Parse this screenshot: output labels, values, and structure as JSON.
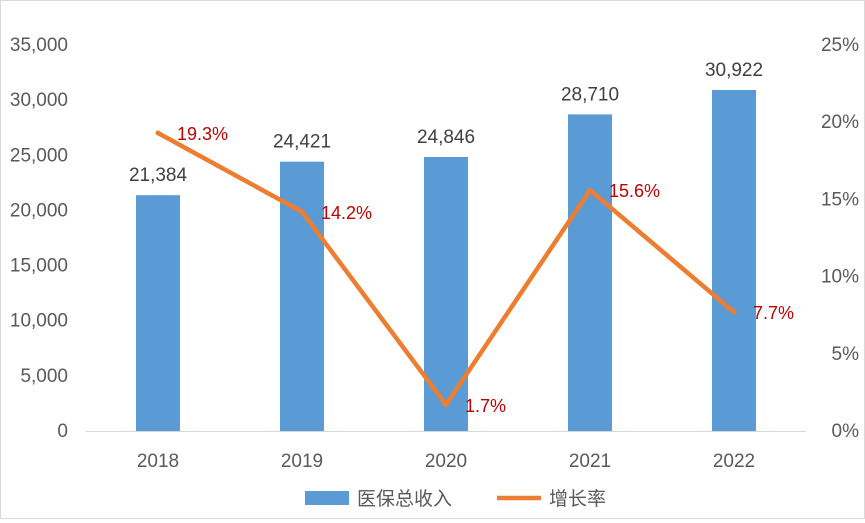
{
  "chart_data": {
    "type": "bar",
    "categories": [
      "2018",
      "2019",
      "2020",
      "2021",
      "2022"
    ],
    "series": [
      {
        "name": "医保总收入",
        "type": "bar",
        "axis": "left",
        "values": [
          21384,
          24421,
          24846,
          28710,
          30922
        ],
        "labels": [
          "21,384",
          "24,421",
          "24,846",
          "28,710",
          "30,922"
        ],
        "color": "#5b9bd5"
      },
      {
        "name": "增长率",
        "type": "line",
        "axis": "right",
        "values": [
          19.3,
          14.2,
          1.7,
          15.6,
          7.7
        ],
        "labels": [
          "19.3%",
          "14.2%",
          "1.7%",
          "15.6%",
          "7.7%"
        ],
        "color": "#ed7d31",
        "label_color": "#c00000"
      }
    ],
    "y_left": {
      "lim": [
        0,
        35000
      ],
      "ticks": [
        0,
        5000,
        10000,
        15000,
        20000,
        25000,
        30000,
        35000
      ],
      "tick_labels": [
        "0",
        "5,000",
        "10,000",
        "15,000",
        "20,000",
        "25,000",
        "30,000",
        "35,000"
      ]
    },
    "y_right": {
      "lim": [
        0,
        25
      ],
      "ticks": [
        0,
        5,
        10,
        15,
        20,
        25
      ],
      "tick_labels": [
        "0%",
        "5%",
        "10%",
        "15%",
        "20%",
        "25%"
      ]
    },
    "grid": false,
    "legend_position": "bottom"
  }
}
